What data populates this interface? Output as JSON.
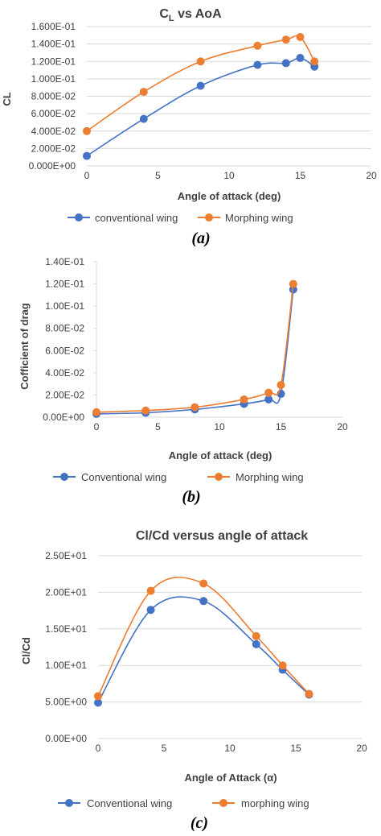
{
  "colors": {
    "conventional": "#4472c4",
    "morphing": "#ed7d31",
    "text": "#404040",
    "grid": "#d9d9d9"
  },
  "chart_data": [
    {
      "type": "line",
      "title": "CL vs AoA",
      "title_main": "C",
      "title_sub": "L",
      "title_rest": " vs AoA",
      "xlabel": "Angle of attack (deg)",
      "ylabel": "CL",
      "xlim": [
        0,
        20
      ],
      "ylim": [
        0,
        0.16
      ],
      "x_ticks": [
        0,
        5,
        10,
        15,
        20
      ],
      "y_ticks": [
        0,
        0.02,
        0.04,
        0.06,
        0.08,
        0.1,
        0.12,
        0.14,
        0.16
      ],
      "x_tick_labels": [
        "0",
        "5",
        "10",
        "15",
        "20"
      ],
      "y_tick_labels": [
        "0.000E+00",
        "2.000E-02",
        "4.000E-02",
        "6.000E-02",
        "8.000E-02",
        "1.000E-01",
        "1.200E-01",
        "1.400E-01",
        "1.600E-01"
      ],
      "grid": "horizontal",
      "legend": "bottom",
      "caption": "(a)",
      "series": [
        {
          "name": "conventional wing",
          "x": [
            0,
            4,
            8,
            12,
            14,
            15,
            16
          ],
          "y": [
            0.0115,
            0.054,
            0.092,
            0.116,
            0.118,
            0.124,
            0.114
          ]
        },
        {
          "name": "Morphing wing",
          "x": [
            0,
            4,
            8,
            12,
            14,
            15,
            16
          ],
          "y": [
            0.04,
            0.085,
            0.12,
            0.138,
            0.145,
            0.148,
            0.12
          ]
        }
      ]
    },
    {
      "type": "line",
      "title": "",
      "xlabel": "Angle of attack (deg)",
      "ylabel": "Cofficient of drag",
      "xlim": [
        0,
        20
      ],
      "ylim": [
        0,
        0.14
      ],
      "x_ticks": [
        0,
        5,
        10,
        15,
        20
      ],
      "y_ticks": [
        0,
        0.02,
        0.04,
        0.06,
        0.08,
        0.1,
        0.12,
        0.14
      ],
      "x_tick_labels": [
        "0",
        "5",
        "10",
        "15",
        "20"
      ],
      "y_tick_labels": [
        "0.00E+00",
        "2.00E-02",
        "4.00E-02",
        "6.00E-02",
        "8.00E-02",
        "1.00E-01",
        "1.20E-01",
        "1.40E-01"
      ],
      "grid": "none",
      "legend": "bottom",
      "caption": "(b)",
      "series": [
        {
          "name": "Conventional wing",
          "x": [
            0,
            4,
            8,
            12,
            14,
            15,
            16
          ],
          "y": [
            0.003,
            0.004,
            0.007,
            0.012,
            0.016,
            0.021,
            0.115
          ]
        },
        {
          "name": "Morphing wing",
          "x": [
            0,
            4,
            8,
            12,
            14,
            15,
            16
          ],
          "y": [
            0.0045,
            0.006,
            0.009,
            0.016,
            0.022,
            0.029,
            0.12
          ]
        }
      ]
    },
    {
      "type": "line",
      "title": "Cl/Cd versus angle of attack",
      "xlabel": "Angle of Attack (α)",
      "ylabel": "Cl/Cd",
      "xlim": [
        0,
        20
      ],
      "ylim": [
        0,
        25
      ],
      "x_ticks": [
        0,
        5,
        10,
        15,
        20
      ],
      "y_ticks": [
        0,
        5,
        10,
        15,
        20,
        25
      ],
      "x_tick_labels": [
        "0",
        "5",
        "10",
        "15",
        "20"
      ],
      "y_tick_labels": [
        "0.00E+00",
        "5.00E+00",
        "1.00E+01",
        "1.50E+01",
        "2.00E+01",
        "2.50E+01"
      ],
      "grid": "horizontal",
      "legend": "bottom",
      "caption": "(c)",
      "series": [
        {
          "name": "Conventional wing",
          "x": [
            0,
            4,
            8,
            12,
            14,
            16
          ],
          "y": [
            4.9,
            17.6,
            18.8,
            12.9,
            9.4,
            6.0
          ]
        },
        {
          "name": "morphing wing",
          "x": [
            0,
            4,
            8,
            12,
            14,
            16
          ],
          "y": [
            5.8,
            20.2,
            21.2,
            14.0,
            10.0,
            6.1
          ]
        }
      ]
    }
  ]
}
